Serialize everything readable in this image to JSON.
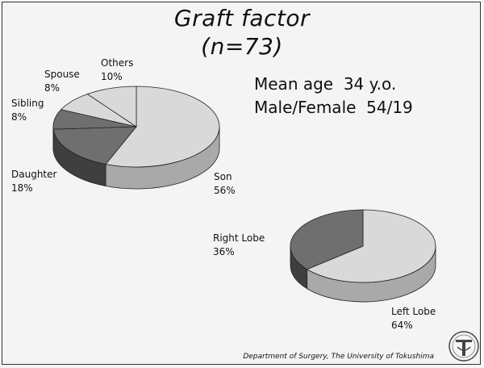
{
  "title": "Graft factor",
  "subtitle": "(n=73)",
  "stats": {
    "line1": "Mean age  34 y.o.",
    "line2": "Male/Female  54/19"
  },
  "footer": "Department of  Surgery, The University of Tokushima",
  "colors": {
    "light": "#d9d9d9",
    "light_side": "#a9a9a9",
    "dark": "#6f6f6f",
    "dark_side": "#3f3f3f"
  },
  "chart_data": [
    {
      "type": "pie",
      "slices": [
        {
          "label": "Son",
          "value": 56,
          "display": "56%"
        },
        {
          "label": "Daughter",
          "value": 18,
          "display": "18%"
        },
        {
          "label": "Sibling",
          "value": 8,
          "display": "8%"
        },
        {
          "label": "Spouse",
          "value": 8,
          "display": "8%"
        },
        {
          "label": "Others",
          "value": 10,
          "display": "10%"
        }
      ]
    },
    {
      "type": "pie",
      "slices": [
        {
          "label": "Left Lobe",
          "value": 64,
          "display": "64%"
        },
        {
          "label": "Right Lobe",
          "value": 36,
          "display": "36%"
        }
      ]
    }
  ]
}
